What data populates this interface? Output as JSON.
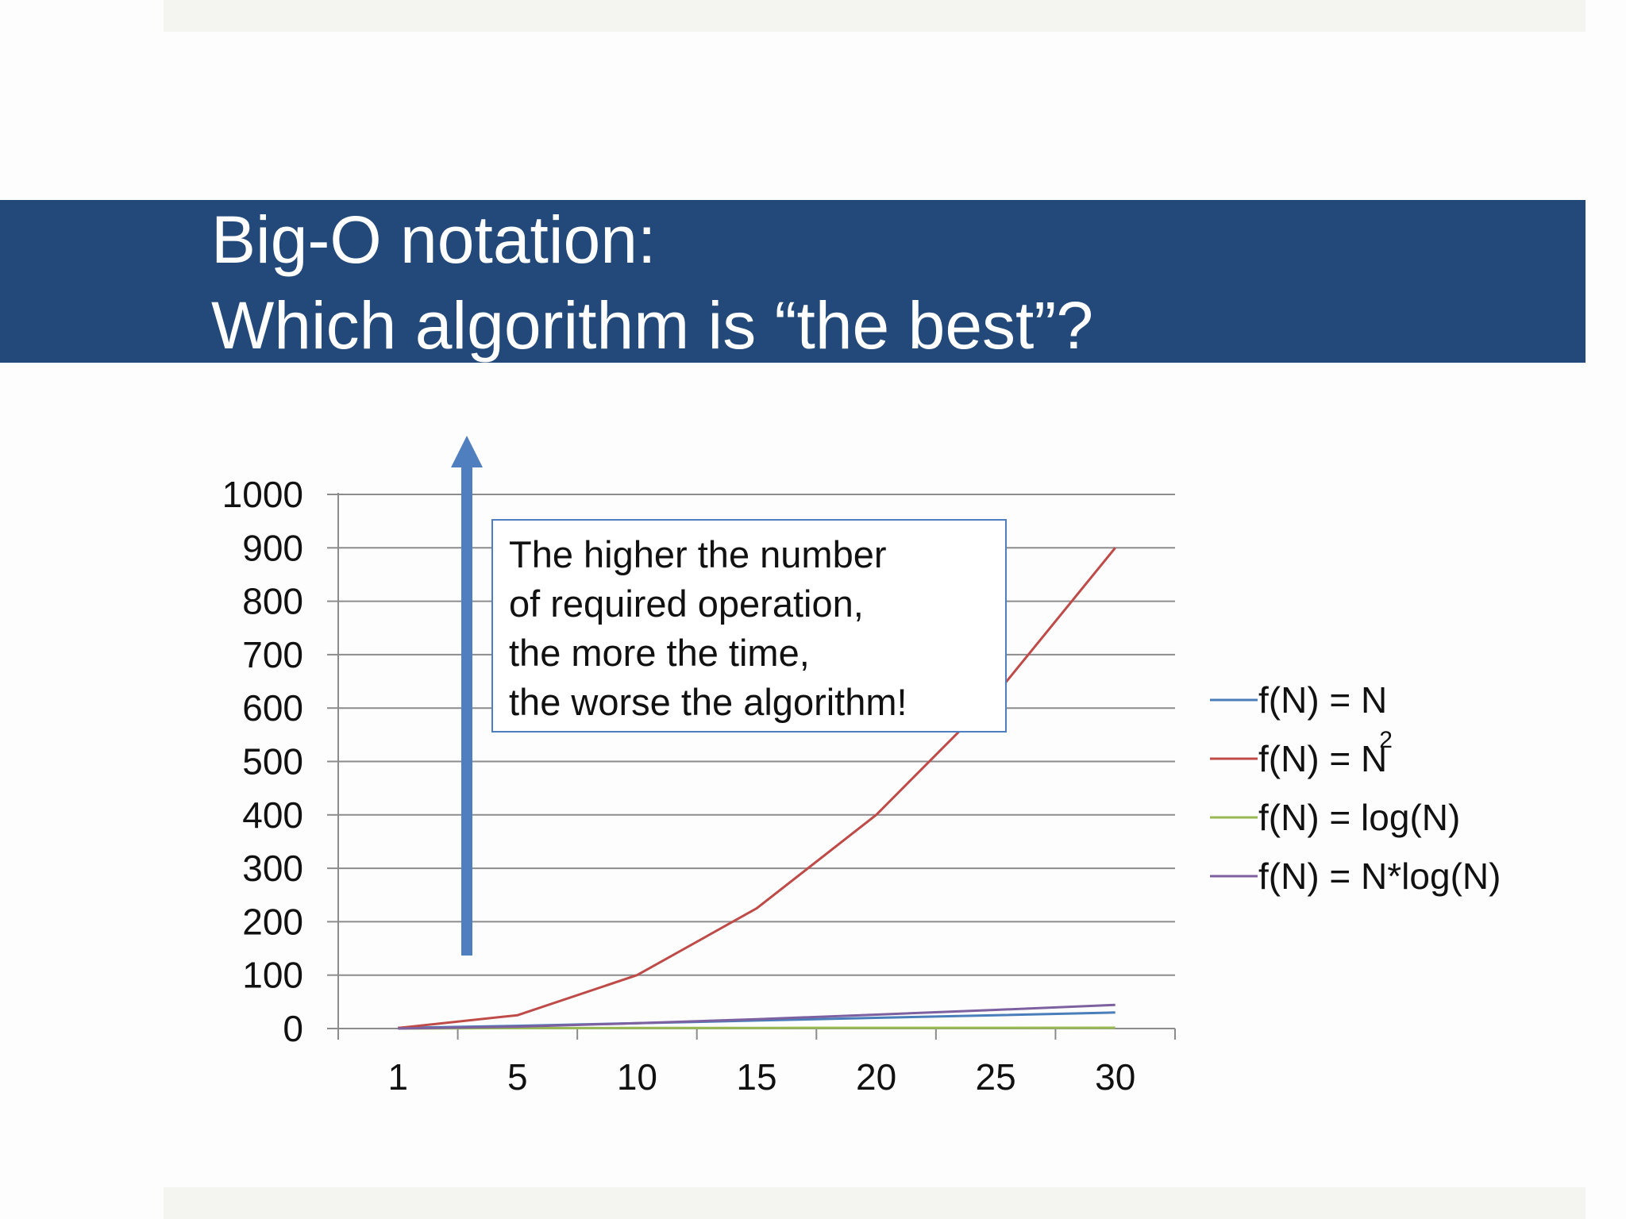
{
  "slide": {
    "title_line_1": "Big-O notation:",
    "title_line_2": "Which algorithm is “the best”?",
    "colors": {
      "title_band": "#23497a",
      "title_text": "#ffffff",
      "arrow": "#4f7fbf"
    },
    "callout": {
      "lines": [
        "The higher the number",
        "of required operation,",
        "the more the time,",
        "the worse the algorithm!"
      ]
    }
  },
  "chart_data": {
    "type": "line",
    "categories": [
      "1",
      "5",
      "10",
      "15",
      "20",
      "25",
      "30"
    ],
    "series": [
      {
        "name": "f(N) = N",
        "values": [
          1,
          5,
          10,
          15,
          20,
          25,
          30
        ],
        "color": "#4a7ebb"
      },
      {
        "name": "f(N) = N2",
        "name_base": "f(N) = N",
        "name_sup": "2",
        "values": [
          1,
          25,
          100,
          225,
          400,
          625,
          900
        ],
        "color": "#be4b48"
      },
      {
        "name": "f(N) = log(N)",
        "values": [
          0,
          0.7,
          1,
          1.18,
          1.3,
          1.4,
          1.48
        ],
        "color": "#98b954"
      },
      {
        "name": "f(N) = N*log(N)",
        "values": [
          0,
          3.5,
          10,
          17.6,
          26,
          34.9,
          44.3
        ],
        "color": "#7d60a0"
      }
    ],
    "ylim": [
      0,
      1000
    ],
    "yticks": [
      0,
      100,
      200,
      300,
      400,
      500,
      600,
      700,
      800,
      900,
      1000
    ],
    "grid": true,
    "legend_position": "right"
  }
}
